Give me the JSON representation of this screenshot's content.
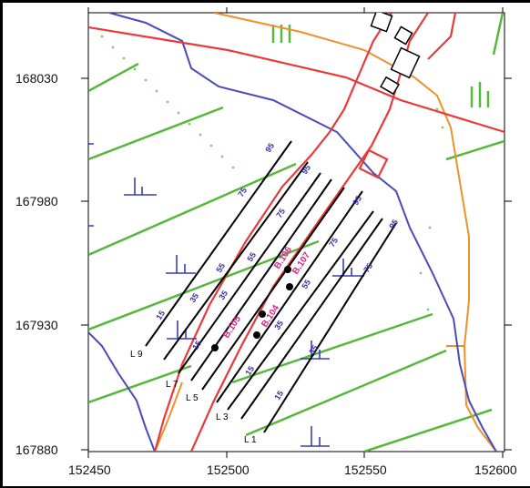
{
  "map": {
    "y_ticks": [
      "168030",
      "167980",
      "167930",
      "167880"
    ],
    "x_ticks": [
      "152450",
      "152500",
      "152550",
      "152600"
    ],
    "line_labels": [
      "L 9",
      "L 7",
      "L 5",
      "L 3",
      "L 1"
    ],
    "station_labels": [
      "15",
      "35",
      "55",
      "75",
      "95"
    ],
    "sample_labels": [
      "B.105",
      "B.104",
      "B.106",
      "B.107"
    ],
    "colors": {
      "road": "#e83a3a",
      "stream": "#4a4ab8",
      "contour": "#55b83a",
      "fence": "#f0902a",
      "profile": "#000000",
      "marsh_symbol": "#3b3bb0"
    }
  }
}
